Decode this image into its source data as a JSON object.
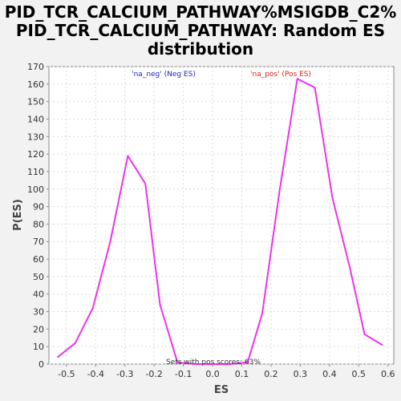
{
  "chart_data": {
    "type": "line",
    "title_lines": [
      "PID_TCR_CALCIUM_PATHWAY%MSIGDB_C2%",
      "PID_TCR_CALCIUM_PATHWAY: Random ES",
      "distribution"
    ],
    "xlabel": "ES",
    "ylabel": "P(ES)",
    "xlim": [
      -0.56,
      0.62
    ],
    "ylim": [
      0,
      170
    ],
    "xticks": [
      -0.5,
      -0.4,
      -0.3,
      -0.2,
      -0.1,
      0.0,
      0.1,
      0.2,
      0.3,
      0.4,
      0.5,
      0.6
    ],
    "xtick_labels": [
      "-0.5",
      "-0.4",
      "-0.3",
      "-0.2",
      "-0.1",
      "0.0",
      "0.1",
      "0.2",
      "0.3",
      "0.4",
      "0.5",
      "0.6"
    ],
    "yticks": [
      0,
      10,
      20,
      30,
      40,
      50,
      60,
      70,
      80,
      90,
      100,
      110,
      120,
      130,
      140,
      150,
      160,
      170
    ],
    "ytick_labels": [
      "0",
      "10",
      "20",
      "30",
      "40",
      "50",
      "60",
      "70",
      "80",
      "90",
      "100",
      "110",
      "120",
      "130",
      "140",
      "150",
      "160",
      "170"
    ],
    "grid": true,
    "series": [
      {
        "color": "#ee33ee",
        "x": [
          -0.53,
          -0.47,
          -0.41,
          -0.35,
          -0.29,
          -0.23,
          -0.18,
          -0.12,
          -0.06,
          0.0,
          0.06,
          0.12,
          0.17,
          0.23,
          0.29,
          0.35,
          0.41,
          0.47,
          0.52,
          0.58
        ],
        "y": [
          4,
          12,
          32,
          70,
          119,
          103,
          34,
          1,
          0,
          0,
          0,
          1,
          29,
          100,
          163,
          158,
          95,
          55,
          17,
          11
        ]
      }
    ],
    "legend": [
      {
        "text": "'na_neg' (Neg ES)",
        "color": "#2222cc"
      },
      {
        "text": "'na_pos' (Pos ES)",
        "color": "#dd2222"
      }
    ],
    "annotation": "Sets with pos scores: 63%"
  }
}
